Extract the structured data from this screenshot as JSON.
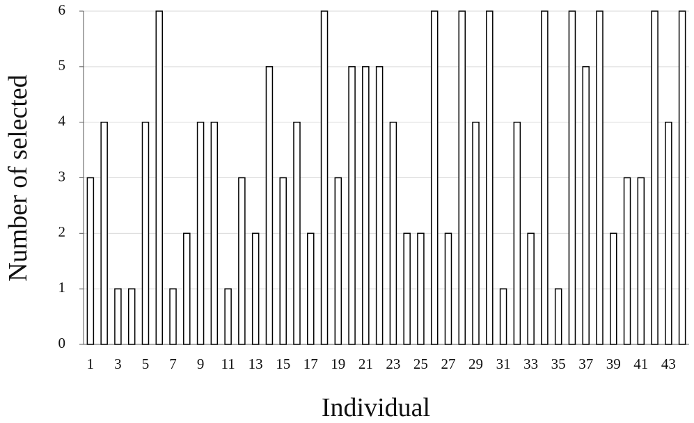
{
  "chart_data": {
    "type": "bar",
    "x_label": "Individual",
    "y_label": "Number of selected",
    "categories": [
      "1",
      null,
      "3",
      null,
      "5",
      null,
      "7",
      null,
      "9",
      null,
      "11",
      null,
      "13",
      null,
      "15",
      null,
      "17",
      null,
      "19",
      null,
      "21",
      null,
      "23",
      null,
      "25",
      null,
      "27",
      null,
      "29",
      null,
      "31",
      null,
      "33",
      null,
      "35",
      null,
      "37",
      null,
      "39",
      null,
      "41",
      null,
      "43",
      null
    ],
    "values": [
      3,
      4,
      1,
      1,
      4,
      6,
      1,
      2,
      4,
      4,
      1,
      3,
      2,
      5,
      3,
      4,
      2,
      6,
      3,
      5,
      5,
      5,
      4,
      2,
      2,
      6,
      2,
      6,
      4,
      6,
      1,
      4,
      2,
      6,
      1,
      6,
      5,
      6,
      2,
      3,
      3,
      6,
      4,
      6
    ],
    "color": "#ffffff",
    "ylim": [
      0,
      6
    ],
    "yticks": [
      0,
      1,
      2,
      3,
      4,
      5,
      6
    ],
    "grid": true
  }
}
